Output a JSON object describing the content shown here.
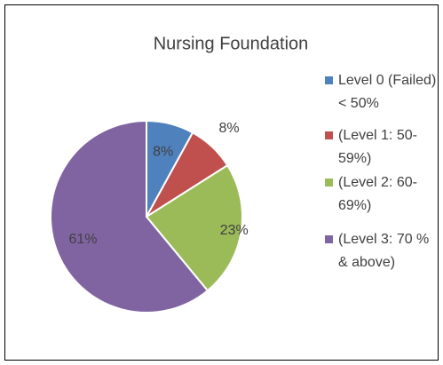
{
  "chart_data": {
    "type": "pie",
    "title": "Nursing Foundation",
    "categories": [
      "Level 0 (Failed) < 50%",
      "(Level 1: 50-59%)",
      "(Level 2: 60-69%)",
      "(Level 3: 70 % & above)"
    ],
    "values": [
      8,
      8,
      23,
      61
    ],
    "value_labels": [
      "8%",
      "8%",
      "23%",
      "61%"
    ],
    "colors": [
      "#4F81BD",
      "#C0504D",
      "#9BBB59",
      "#8064A2"
    ],
    "legend": "right"
  }
}
